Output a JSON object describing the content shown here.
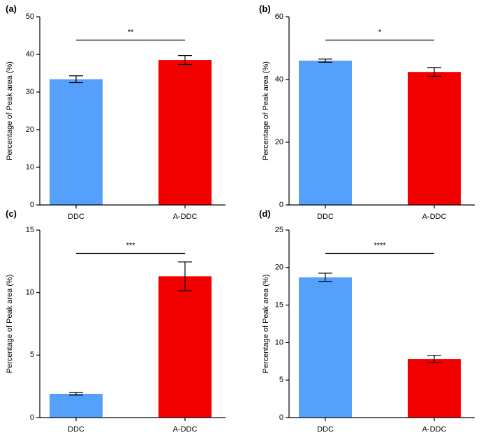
{
  "chart_data": [
    {
      "type": "bar",
      "panel_label": "(a)",
      "categories": [
        "DDC",
        "A-DDC"
      ],
      "values": [
        33.4,
        38.5
      ],
      "errors": [
        0.9,
        1.2
      ],
      "colors": [
        "#55a0fb",
        "#f20000"
      ],
      "ylabel": "Percentage of Peak area (%)",
      "xlabel": "",
      "ylim": [
        0,
        50
      ],
      "yticks": [
        0,
        10,
        20,
        30,
        40,
        50
      ],
      "significance": "**"
    },
    {
      "type": "bar",
      "panel_label": "(b)",
      "categories": [
        "DDC",
        "A-DDC"
      ],
      "values": [
        46.0,
        42.4
      ],
      "errors": [
        0.5,
        1.4
      ],
      "colors": [
        "#55a0fb",
        "#f20000"
      ],
      "ylabel": "Percentage of Peak area (%)",
      "xlabel": "",
      "ylim": [
        0,
        60
      ],
      "yticks": [
        0,
        20,
        40,
        60
      ],
      "significance": "*"
    },
    {
      "type": "bar",
      "panel_label": "(c)",
      "categories": [
        "DDC",
        "A-DDC"
      ],
      "values": [
        1.9,
        11.3
      ],
      "errors": [
        0.1,
        1.15
      ],
      "colors": [
        "#55a0fb",
        "#f20000"
      ],
      "ylabel": "Percentage of Peak area (%)",
      "xlabel": "",
      "ylim": [
        0,
        15
      ],
      "yticks": [
        0,
        5,
        10,
        15
      ],
      "significance": "***"
    },
    {
      "type": "bar",
      "panel_label": "(d)",
      "categories": [
        "DDC",
        "A-DDC"
      ],
      "values": [
        18.7,
        7.8
      ],
      "errors": [
        0.55,
        0.5
      ],
      "colors": [
        "#55a0fb",
        "#f20000"
      ],
      "ylabel": "Percentage of Peak area (%)",
      "xlabel": "",
      "ylim": [
        0,
        25
      ],
      "yticks": [
        0,
        5,
        10,
        15,
        20,
        25
      ],
      "significance": "****"
    }
  ]
}
